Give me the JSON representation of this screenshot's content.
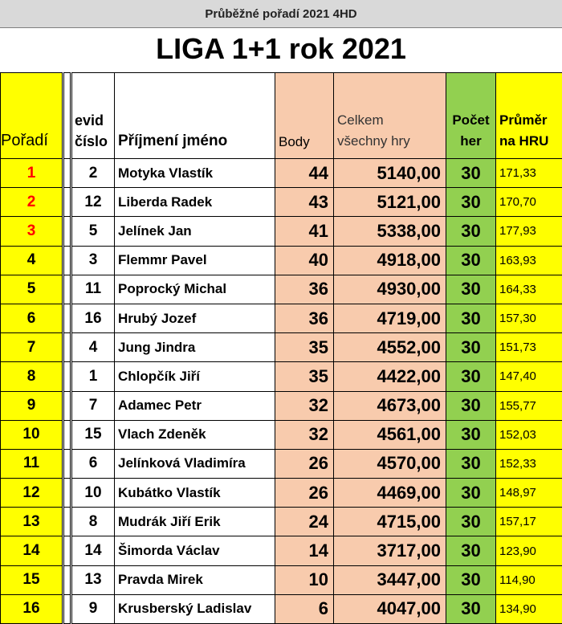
{
  "header_bar": "Průběžné pořadí 2021 4HD",
  "title": "LIGA 1+1 rok 2021",
  "columns": {
    "rank": "Pořadí",
    "evid_line1": "evid",
    "evid_line2": "číslo",
    "name": "Příjmení jméno",
    "points": "Body",
    "total_line1": "Celkem",
    "total_line2": "všechny hry",
    "games_line1": "Počet",
    "games_line2": "her",
    "avg_line1": "Průměr",
    "avg_line2": "na HRU"
  },
  "rows": [
    {
      "rank": "1",
      "evid": "2",
      "name": "Motyka Vlastík",
      "points": "44",
      "total": "5140,00",
      "games": "30",
      "avg": "171,33"
    },
    {
      "rank": "2",
      "evid": "12",
      "name": "Liberda Radek",
      "points": "43",
      "total": "5121,00",
      "games": "30",
      "avg": "170,70"
    },
    {
      "rank": "3",
      "evid": "5",
      "name": "Jelínek Jan",
      "points": "41",
      "total": "5338,00",
      "games": "30",
      "avg": "177,93"
    },
    {
      "rank": "4",
      "evid": "3",
      "name": "Flemmr Pavel",
      "points": "40",
      "total": "4918,00",
      "games": "30",
      "avg": "163,93"
    },
    {
      "rank": "5",
      "evid": "11",
      "name": "Poprocký Michal",
      "points": "36",
      "total": "4930,00",
      "games": "30",
      "avg": "164,33"
    },
    {
      "rank": "6",
      "evid": "16",
      "name": "Hrubý Jozef",
      "points": "36",
      "total": "4719,00",
      "games": "30",
      "avg": "157,30"
    },
    {
      "rank": "7",
      "evid": "4",
      "name": "Jung Jindra",
      "points": "35",
      "total": "4552,00",
      "games": "30",
      "avg": "151,73"
    },
    {
      "rank": "8",
      "evid": "1",
      "name": "Chlopčík Jiří",
      "points": "35",
      "total": "4422,00",
      "games": "30",
      "avg": "147,40"
    },
    {
      "rank": "9",
      "evid": "7",
      "name": "Adamec Petr",
      "points": "32",
      "total": "4673,00",
      "games": "30",
      "avg": "155,77"
    },
    {
      "rank": "10",
      "evid": "15",
      "name": "Vlach Zdeněk",
      "points": "32",
      "total": "4561,00",
      "games": "30",
      "avg": "152,03"
    },
    {
      "rank": "11",
      "evid": "6",
      "name": "Jelínková Vladimíra",
      "points": "26",
      "total": "4570,00",
      "games": "30",
      "avg": "152,33"
    },
    {
      "rank": "12",
      "evid": "10",
      "name": "Kubátko Vlastík",
      "points": "26",
      "total": "4469,00",
      "games": "30",
      "avg": "148,97"
    },
    {
      "rank": "13",
      "evid": "8",
      "name": "Mudrák Jiří Erik",
      "points": "24",
      "total": "4715,00",
      "games": "30",
      "avg": "157,17"
    },
    {
      "rank": "14",
      "evid": "14",
      "name": "Šimorda Václav",
      "points": "14",
      "total": "3717,00",
      "games": "30",
      "avg": "123,90"
    },
    {
      "rank": "15",
      "evid": "13",
      "name": "Pravda Mirek",
      "points": "10",
      "total": "3447,00",
      "games": "30",
      "avg": "114,90"
    },
    {
      "rank": "16",
      "evid": "9",
      "name": "Krusberský Ladislav",
      "points": "6",
      "total": "4047,00",
      "games": "30",
      "avg": "134,90"
    }
  ],
  "colors": {
    "rank_bg": "#ffff00",
    "points_bg": "#f8cbad",
    "games_bg": "#92d050",
    "top3_text": "#ff0000"
  }
}
